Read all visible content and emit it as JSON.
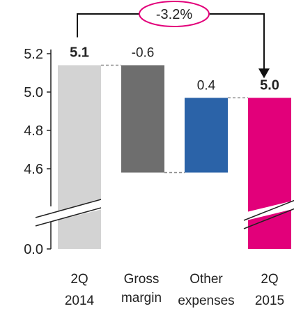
{
  "chart_data": {
    "type": "bar",
    "subtype": "waterfall",
    "categories": [
      {
        "line1": "2Q",
        "line2": "2014"
      },
      {
        "line1": "Gross",
        "line2": "margin"
      },
      {
        "line1": "Other",
        "line2": "expenses"
      },
      {
        "line1": "2Q",
        "line2": "2015"
      }
    ],
    "bars": [
      {
        "kind": "total",
        "start": 0,
        "end": 5.14,
        "label": "5.1",
        "color": "#d3d3d3"
      },
      {
        "kind": "delta",
        "start": 5.14,
        "end": 4.58,
        "label": "-0.6",
        "color": "#6e6e6e"
      },
      {
        "kind": "delta",
        "start": 4.58,
        "end": 4.97,
        "label": "0.4",
        "color": "#2b63a8"
      },
      {
        "kind": "total",
        "start": 0,
        "end": 4.97,
        "label": "5.0",
        "color": "#e2007a"
      }
    ],
    "y_ticks": [
      "0.0",
      "4.6",
      "4.8",
      "5.0",
      "5.2"
    ],
    "ylim": [
      4.45,
      5.25
    ],
    "axis_break": true,
    "change_annotation": "-3.2%",
    "accent_color": "#e2007a",
    "connector_color": "#8c8c8c"
  }
}
